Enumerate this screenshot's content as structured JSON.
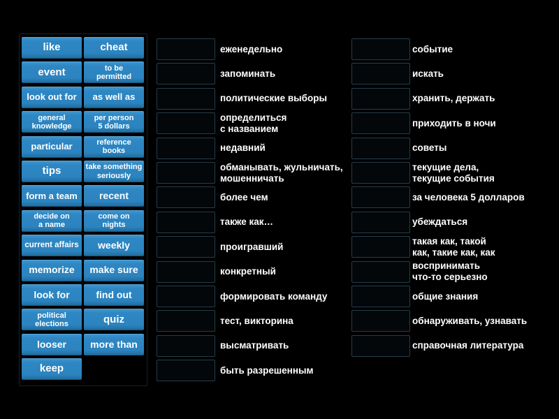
{
  "activity": {
    "type_label": "match-up",
    "tiles_col1": [
      "like",
      "event",
      "look out for",
      "general\nknowledge",
      "particular",
      "tips",
      "form a team",
      "decide on\na name",
      "current affairs",
      "memorize",
      "look for",
      "political\nelections",
      "looser",
      "keep"
    ],
    "tiles_col2": [
      "cheat",
      "to be\npermitted",
      "as well as",
      "per person\n5 dollars",
      "reference\nbooks",
      "take something\nseriously",
      "recent",
      "come on\nnights",
      "weekly",
      "make sure",
      "find out",
      "quiz",
      "more than"
    ],
    "middle_definitions": [
      "еженедельно",
      "запоминать",
      "политические выборы",
      "определиться\nс названием",
      "недавний",
      "обманывать, жульничать,\nмошенничать",
      "более чем",
      "также как…",
      "проигравший",
      "конкретный",
      "формировать команду",
      "тест, викторина",
      "высматривать",
      "быть разрешенным"
    ],
    "right_definitions": [
      "событие",
      "искать",
      "хранить, держать",
      "приходить в ночи",
      "советы",
      "текущие дела,\nтекущие события",
      "за человека 5 долларов",
      "убеждаться",
      "такая как, такой\nкак, такие как, как",
      "воспринимать\nчто-то серьезно",
      "общие знания",
      "обнаруживать, узнавать",
      "справочная литература"
    ]
  },
  "colors": {
    "background": "#000000",
    "tile_blue": "#2e87c3",
    "tile_edge_light": "#58a6d8",
    "tile_edge_dark": "#17557d",
    "slot_border": "#263d4b",
    "text": "#ffffff"
  }
}
